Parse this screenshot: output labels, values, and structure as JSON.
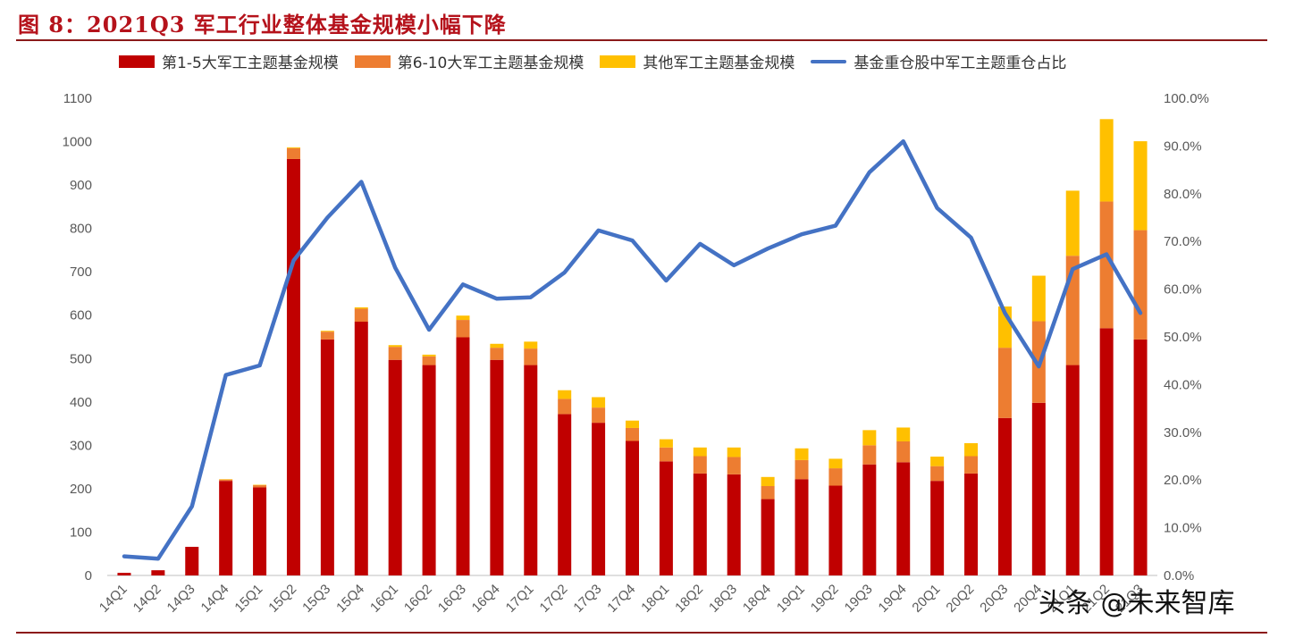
{
  "figure": {
    "title": "图 8：2021Q3 军工行业整体基金规模小幅下降",
    "watermark": "头条 @未来智库"
  },
  "colors": {
    "top5": "#c00000",
    "top6to10": "#ed7d31",
    "other": "#ffc000",
    "line": "#4472c4",
    "title": "#b5121b"
  },
  "chart_data": {
    "type": "bar",
    "stacked": true,
    "categories": [
      "14Q1",
      "14Q2",
      "14Q3",
      "14Q4",
      "15Q1",
      "15Q2",
      "15Q3",
      "15Q4",
      "16Q1",
      "16Q2",
      "16Q3",
      "16Q4",
      "17Q1",
      "17Q2",
      "17Q3",
      "17Q4",
      "18Q1",
      "18Q2",
      "18Q3",
      "18Q4",
      "19Q1",
      "19Q2",
      "19Q3",
      "19Q4",
      "20Q1",
      "20Q2",
      "20Q3",
      "20Q4",
      "21Q1",
      "21Q2",
      "21Q3"
    ],
    "series": [
      {
        "name": "第1-5大军工主题基金规模",
        "type": "bar",
        "axis": "left",
        "values": [
          6,
          12,
          66,
          218,
          203,
          960,
          544,
          585,
          497,
          485,
          549,
          497,
          485,
          372,
          352,
          310,
          263,
          235,
          233,
          176,
          222,
          207,
          256,
          261,
          218,
          235,
          363,
          398,
          485,
          570,
          544
        ]
      },
      {
        "name": "第6-10大军工主题基金规模",
        "type": "bar",
        "axis": "left",
        "values": [
          0,
          0,
          0,
          3,
          5,
          25,
          18,
          30,
          30,
          20,
          40,
          28,
          38,
          35,
          35,
          30,
          32,
          40,
          40,
          30,
          44,
          40,
          44,
          48,
          34,
          40,
          162,
          188,
          252,
          292,
          252
        ]
      },
      {
        "name": "其他军工主题基金规模",
        "type": "bar",
        "axis": "left",
        "values": [
          0,
          0,
          0,
          1,
          1,
          2,
          2,
          3,
          4,
          4,
          10,
          9,
          16,
          20,
          24,
          17,
          19,
          20,
          22,
          21,
          27,
          22,
          35,
          32,
          22,
          30,
          95,
          105,
          150,
          190,
          205
        ]
      },
      {
        "name": "基金重仓股中军工主题重仓占比",
        "type": "line",
        "axis": "right",
        "values": [
          4.0,
          3.5,
          14.5,
          42.0,
          44.0,
          66.0,
          75.0,
          82.5,
          64.5,
          51.5,
          61.0,
          58.0,
          58.3,
          63.5,
          72.3,
          70.2,
          61.8,
          69.5,
          65.0,
          68.5,
          71.5,
          73.3,
          84.5,
          91.0,
          77.0,
          70.8,
          55.0,
          43.8,
          64.2,
          67.3,
          55.0
        ]
      }
    ],
    "y_left": {
      "min": 0,
      "max": 1100,
      "ticks": [
        "0",
        "100",
        "200",
        "300",
        "400",
        "500",
        "600",
        "700",
        "800",
        "900",
        "1000",
        "1100"
      ]
    },
    "y_right": {
      "min": 0,
      "max": 100,
      "ticks": [
        "0.0%",
        "10.0%",
        "20.0%",
        "30.0%",
        "40.0%",
        "50.0%",
        "60.0%",
        "70.0%",
        "80.0%",
        "90.0%",
        "100.0%"
      ]
    },
    "legend": "top",
    "grid": false
  }
}
